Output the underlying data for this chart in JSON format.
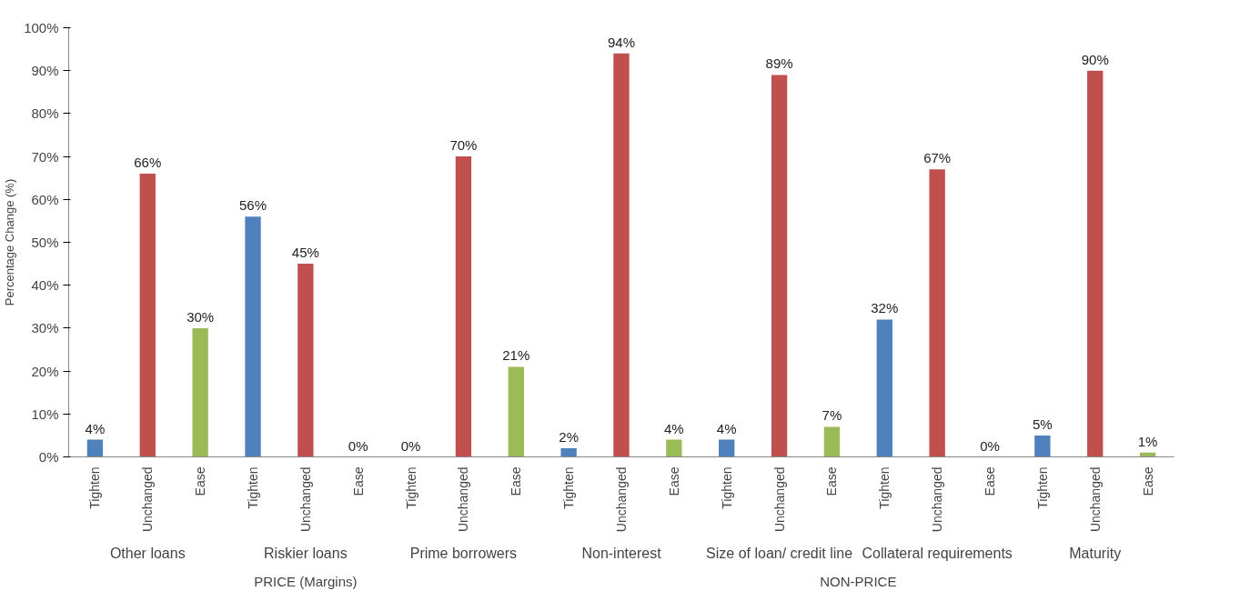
{
  "chart_data": {
    "type": "bar",
    "ylabel": "Percentage Change (%)",
    "categories": [
      "Tighten",
      "Unchanged",
      "Ease",
      "Tighten",
      "Unchanged",
      "Ease",
      "Tighten",
      "Unchanged",
      "Ease",
      "Tighten",
      "Unchanged",
      "Ease",
      "Tighten",
      "Unchanged",
      "Ease",
      "Tighten",
      "Unchanged",
      "Ease",
      "Tighten",
      "Unchanged",
      "Ease"
    ],
    "values": [
      4,
      66,
      30,
      56,
      45,
      0,
      0,
      70,
      21,
      2,
      94,
      4,
      4,
      89,
      7,
      32,
      67,
      0,
      5,
      90,
      1
    ],
    "value_labels": [
      "4%",
      "66%",
      "30%",
      "56%",
      "45%",
      "0%",
      "0%",
      "70%",
      "21%",
      "2%",
      "94%",
      "4%",
      "4%",
      "89%",
      "7%",
      "32%",
      "67%",
      "0%",
      "5%",
      "90%",
      "1%"
    ],
    "colors": [
      "#4f81bd",
      "#c0504d",
      "#9bbb59",
      "#4f81bd",
      "#c0504d",
      "#9bbb59",
      "#4f81bd",
      "#c0504d",
      "#9bbb59",
      "#4f81bd",
      "#c0504d",
      "#9bbb59",
      "#4f81bd",
      "#c0504d",
      "#9bbb59",
      "#4f81bd",
      "#c0504d",
      "#9bbb59",
      "#4f81bd",
      "#c0504d",
      "#9bbb59"
    ],
    "annotations": [
      "Other loans",
      "Riskier loans",
      "Prime borrowers",
      "Non-interest",
      "Size of loan/ credit line",
      "Collateral requirements",
      "Maturity",
      "PRICE (Margins)",
      "NON-PRICE"
    ],
    "ylim": [
      0,
      100
    ],
    "yticks": [
      {
        "value": 0,
        "label": "0%"
      },
      {
        "value": 10,
        "label": "10%"
      },
      {
        "value": 20,
        "label": "20%"
      },
      {
        "value": 30,
        "label": "30%"
      },
      {
        "value": 40,
        "label": "40%"
      },
      {
        "value": 50,
        "label": "50%"
      },
      {
        "value": 60,
        "label": "60%"
      },
      {
        "value": 70,
        "label": "70%"
      },
      {
        "value": 80,
        "label": "80%"
      },
      {
        "value": 90,
        "label": "90%"
      },
      {
        "value": 100,
        "label": "100%"
      }
    ],
    "grid": false
  }
}
